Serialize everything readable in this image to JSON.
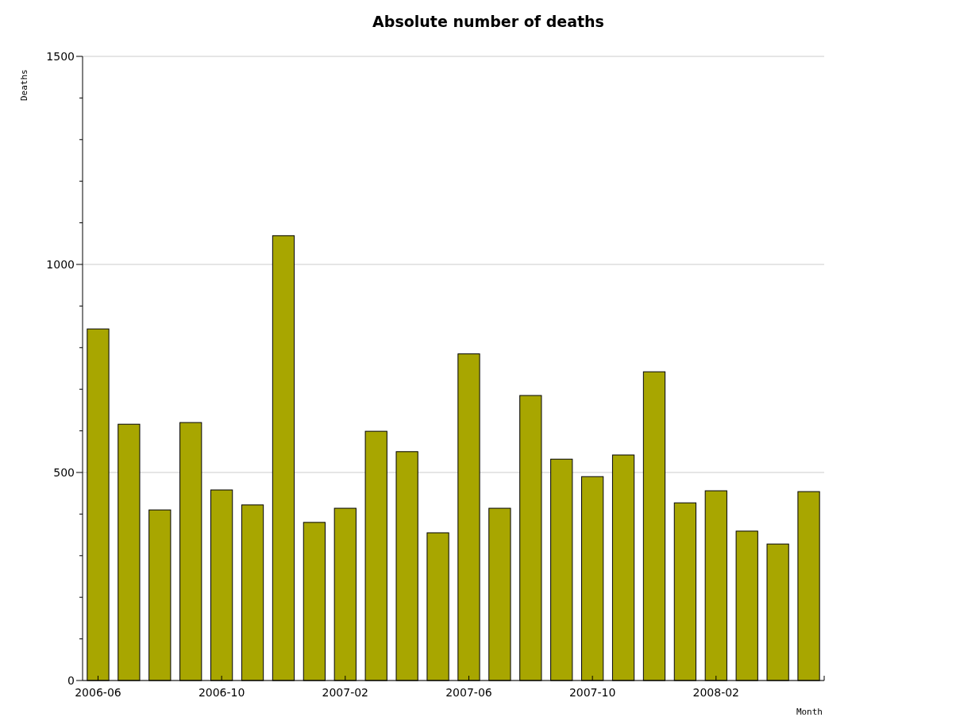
{
  "chart_data": {
    "type": "bar",
    "title": "Absolute number of deaths",
    "xlabel": "Month",
    "ylabel": "Deaths",
    "categories": [
      "2006-06",
      null,
      null,
      null,
      "2006-10",
      null,
      null,
      null,
      "2007-02",
      null,
      null,
      null,
      "2007-06",
      null,
      null,
      null,
      "2007-10",
      null,
      null,
      null,
      "2008-02",
      null,
      null,
      null
    ],
    "values": [
      845,
      616,
      410,
      620,
      458,
      422,
      1069,
      380,
      414,
      599,
      550,
      355,
      785,
      414,
      685,
      532,
      490,
      542,
      742,
      427,
      456,
      359,
      328,
      454
    ],
    "color": "#a8a600",
    "ylim": [
      0,
      1500
    ],
    "yticks": [
      0,
      {
        "value": 100,
        "label": null
      },
      {
        "value": 200,
        "label": null
      },
      {
        "value": 300,
        "label": null
      },
      {
        "value": 400,
        "label": null
      },
      500,
      {
        "value": 600,
        "label": null
      },
      {
        "value": 700,
        "label": null
      },
      {
        "value": 800,
        "label": null
      },
      {
        "value": 900,
        "label": null
      },
      1000,
      {
        "value": 1100,
        "label": null
      },
      {
        "value": 1200,
        "label": null
      },
      {
        "value": 1300,
        "label": null
      },
      {
        "value": 1400,
        "label": null
      },
      1500
    ],
    "grid": "y"
  }
}
